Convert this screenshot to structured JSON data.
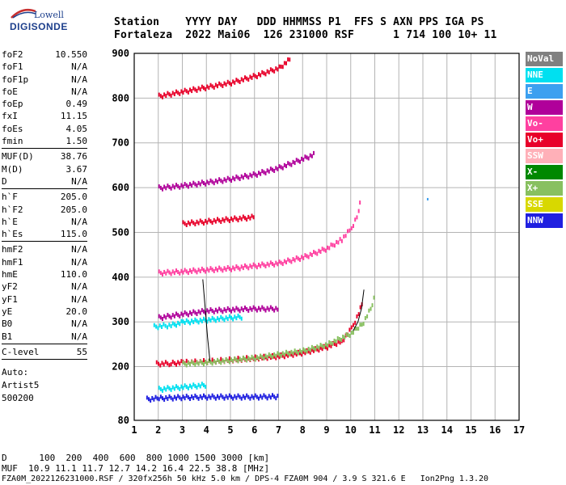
{
  "logo": {
    "line1": "Lowell",
    "line2": "DIGISONDE"
  },
  "header": {
    "row1": "Station    YYYY DAY   DDD HHMMSS P1  FFS S AXN PPS IGA PS",
    "row2": "Fortaleza  2022 Mai06  126 231000 RSF      1 714 100 10+ 11"
  },
  "params_group1": [
    {
      "label": "foF2",
      "value": "10.550"
    },
    {
      "label": "foF1",
      "value": "N/A"
    },
    {
      "label": "foF1p",
      "value": "N/A"
    },
    {
      "label": "foE",
      "value": "N/A"
    },
    {
      "label": "foEp",
      "value": "0.49"
    },
    {
      "label": "fxI",
      "value": "11.15"
    },
    {
      "label": "foEs",
      "value": "4.05"
    },
    {
      "label": "fmin",
      "value": "1.50"
    }
  ],
  "params_group2": [
    {
      "label": "MUF(D)",
      "value": "38.76"
    },
    {
      "label": "M(D)",
      "value": "3.67"
    },
    {
      "label": "D",
      "value": "N/A"
    }
  ],
  "params_group3": [
    {
      "label": "h`F",
      "value": "205.0"
    },
    {
      "label": "h`F2",
      "value": "205.0"
    },
    {
      "label": "h`E",
      "value": "N/A"
    },
    {
      "label": "h`Es",
      "value": "115.0"
    }
  ],
  "params_group4": [
    {
      "label": "hmF2",
      "value": "N/A"
    },
    {
      "label": "hmF1",
      "value": "N/A"
    },
    {
      "label": "hmE",
      "value": "110.0"
    },
    {
      "label": "yF2",
      "value": "N/A"
    },
    {
      "label": "yF1",
      "value": "N/A"
    },
    {
      "label": "yE",
      "value": "20.0"
    },
    {
      "label": "B0",
      "value": "N/A"
    },
    {
      "label": "B1",
      "value": "N/A"
    }
  ],
  "params_group5": [
    {
      "label": "C-level",
      "value": "55"
    }
  ],
  "auto_info": [
    "Auto:",
    "Artist5",
    "500200"
  ],
  "legend": [
    {
      "label": "NoVal",
      "color": "#808080"
    },
    {
      "label": "NNE",
      "color": "#00e0f0"
    },
    {
      "label": "E",
      "color": "#3ca0f0"
    },
    {
      "label": "W",
      "color": "#b0009a"
    },
    {
      "label": "Vo-",
      "color": "#ff40a0"
    },
    {
      "label": "Vo+",
      "color": "#e8002a"
    },
    {
      "label": "SSW",
      "color": "#ffb0b8"
    },
    {
      "label": "X-",
      "color": "#008800"
    },
    {
      "label": "X+",
      "color": "#88c060"
    },
    {
      "label": "SSE",
      "color": "#d8d800"
    },
    {
      "label": "NNW",
      "color": "#2020e0"
    }
  ],
  "footer": {
    "line1": "D      100  200  400  600  800 1000 1500 3000 [km]",
    "line2": "MUF  10.9 11.1 11.7 12.7 14.2 16.4 22.5 38.8 [MHz]",
    "line3": "FZA0M_2022126231000.RSF / 320fx256h 50 kHz 5.0 km / DPS-4 FZA0M 904 / 3.9 S 321.6 E   Ion2Png 1.3.20"
  },
  "chart_data": {
    "type": "scatter",
    "title": "",
    "xlabel": "",
    "ylabel": "",
    "xlim": [
      1,
      17
    ],
    "ylim": [
      80,
      900
    ],
    "x_ticks": [
      1,
      2,
      3,
      4,
      5,
      6,
      7,
      8,
      9,
      10,
      11,
      12,
      13,
      14,
      15,
      16,
      17
    ],
    "y_ticks": [
      80,
      200,
      300,
      400,
      500,
      600,
      700,
      800,
      900
    ],
    "grid": true,
    "series": [
      {
        "name": "Vo+",
        "values": [
          [
            1.9,
            207
          ],
          [
            2.5,
            208
          ],
          [
            3,
            210
          ],
          [
            4,
            212
          ],
          [
            5,
            216
          ],
          [
            6,
            220
          ],
          [
            7,
            224
          ],
          [
            8,
            232
          ],
          [
            9,
            245
          ],
          [
            9.6,
            258
          ],
          [
            10,
            285
          ],
          [
            10.3,
            320
          ],
          [
            10.5,
            350
          ]
        ]
      },
      {
        "name": "X+",
        "values": [
          [
            3,
            207
          ],
          [
            4,
            210
          ],
          [
            5,
            215
          ],
          [
            6,
            220
          ],
          [
            7,
            228
          ],
          [
            8,
            236
          ],
          [
            9,
            250
          ],
          [
            10,
            275
          ],
          [
            10.5,
            300
          ],
          [
            10.8,
            330
          ],
          [
            11,
            365
          ]
        ]
      },
      {
        "name": "Vo-",
        "values": [
          [
            2,
            410
          ],
          [
            3,
            413
          ],
          [
            4,
            417
          ],
          [
            5,
            420
          ],
          [
            6,
            426
          ],
          [
            7,
            432
          ],
          [
            8,
            445
          ],
          [
            9,
            465
          ],
          [
            9.6,
            485
          ],
          [
            10,
            510
          ],
          [
            10.3,
            545
          ],
          [
            10.4,
            590
          ]
        ]
      },
      {
        "name": "W",
        "values": [
          [
            2,
            600
          ],
          [
            3,
            605
          ],
          [
            4,
            612
          ],
          [
            5,
            620
          ],
          [
            6,
            630
          ],
          [
            7,
            645
          ],
          [
            8,
            665
          ],
          [
            8.5,
            676
          ]
        ]
      },
      {
        "name": "Vo+",
        "values": [
          [
            2,
            805
          ],
          [
            3,
            815
          ],
          [
            4,
            825
          ],
          [
            5,
            835
          ],
          [
            6,
            850
          ],
          [
            7,
            868
          ],
          [
            7.5,
            890
          ]
        ]
      },
      {
        "name": "NNE",
        "values": [
          [
            1.8,
            290
          ],
          [
            2.5,
            293
          ],
          [
            3,
            300
          ],
          [
            4,
            305
          ],
          [
            5,
            310
          ],
          [
            5.5,
            312
          ]
        ]
      },
      {
        "name": "W",
        "values": [
          [
            2,
            310
          ],
          [
            3,
            318
          ],
          [
            4,
            325
          ],
          [
            5,
            328
          ],
          [
            6,
            330
          ],
          [
            7,
            330
          ]
        ]
      },
      {
        "name": "NNW",
        "values": [
          [
            1.5,
            128
          ],
          [
            2,
            130
          ],
          [
            3,
            132
          ],
          [
            4,
            133
          ],
          [
            5,
            133
          ],
          [
            6,
            133
          ],
          [
            7,
            134
          ]
        ]
      },
      {
        "name": "NNE",
        "values": [
          [
            2,
            150
          ],
          [
            3,
            155
          ],
          [
            4,
            160
          ]
        ]
      },
      {
        "name": "Vo+",
        "values": [
          [
            3,
            520
          ],
          [
            4,
            525
          ],
          [
            5,
            530
          ],
          [
            6,
            535
          ]
        ]
      },
      {
        "name": "E",
        "values": [
          [
            13.2,
            575
          ]
        ]
      }
    ],
    "traces": [
      {
        "values": [
          [
            3.85,
            395
          ],
          [
            3.95,
            330
          ],
          [
            4.05,
            265
          ],
          [
            4.15,
            212
          ]
        ]
      },
      {
        "values": [
          [
            10.1,
            280
          ],
          [
            10.3,
            300
          ],
          [
            10.45,
            330
          ],
          [
            10.55,
            372
          ]
        ]
      }
    ]
  }
}
